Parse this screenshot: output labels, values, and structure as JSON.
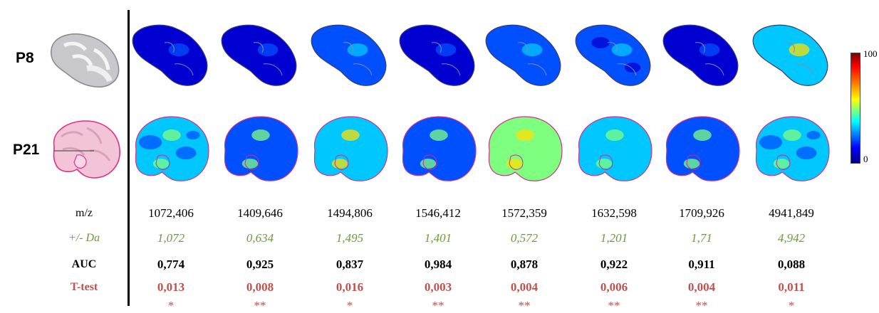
{
  "row_labels": {
    "p8": "P8",
    "p21": "P21"
  },
  "colorbar": {
    "max": "100",
    "min": "0"
  },
  "metric_labels": {
    "mz": "m/z",
    "da": "+/- Da",
    "auc": "AUC",
    "ttest": "T-test"
  },
  "columns": [
    {
      "mz": "1072,406",
      "da": "1,072",
      "auc": "0,774",
      "ttest": "0,013",
      "stars": "*",
      "p8_level": 0.12,
      "p21_level": 0.35
    },
    {
      "mz": "1409,646",
      "da": "0,634",
      "auc": "0,925",
      "ttest": "0,008",
      "stars": "**",
      "p8_level": 0.12,
      "p21_level": 0.3
    },
    {
      "mz": "1494,806",
      "da": "1,495",
      "auc": "0,837",
      "ttest": "0,016",
      "stars": "*",
      "p8_level": 0.2,
      "p21_level": 0.45
    },
    {
      "mz": "1546,412",
      "da": "1,401",
      "auc": "0,984",
      "ttest": "0,003",
      "stars": "**",
      "p8_level": 0.05,
      "p21_level": 0.3
    },
    {
      "mz": "1572,359",
      "da": "0,572",
      "auc": "0,878",
      "ttest": "0,004",
      "stars": "**",
      "p8_level": 0.25,
      "p21_level": 0.55
    },
    {
      "mz": "1632,598",
      "da": "1,201",
      "auc": "0,922",
      "ttest": "0,006",
      "stars": "**",
      "p8_level": 0.15,
      "p21_level": 0.4
    },
    {
      "mz": "1709,926",
      "da": "1,71",
      "auc": "0,911",
      "ttest": "0,004",
      "stars": "**",
      "p8_level": 0.03,
      "p21_level": 0.28
    },
    {
      "mz": "4941,849",
      "da": "4,942",
      "auc": "0,088",
      "ttest": "0,011",
      "stars": "*",
      "p8_level": 0.45,
      "p21_level": 0.32
    }
  ]
}
